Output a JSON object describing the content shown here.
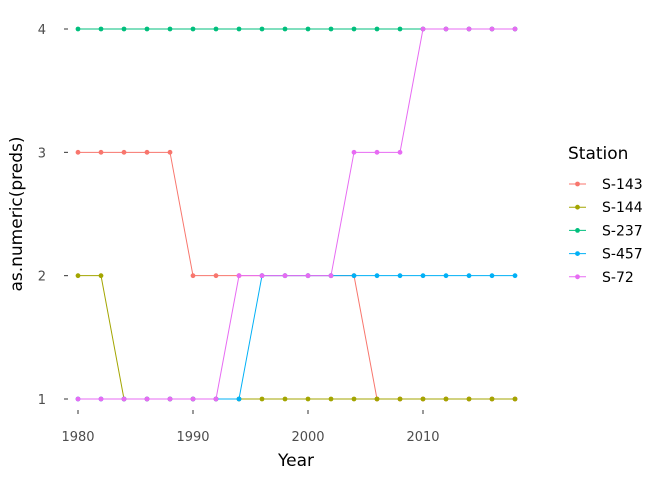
{
  "chart_data": {
    "type": "line",
    "xlabel": "Year",
    "ylabel": "as.numeric(preds)",
    "xlim": [
      1980,
      2018
    ],
    "ylim": [
      1,
      4
    ],
    "x_ticks": [
      1980,
      1990,
      2000,
      2010
    ],
    "x_tick_labels": [
      "1980",
      "1990",
      "2000",
      "2010"
    ],
    "y_ticks": [
      1,
      2,
      3,
      4
    ],
    "y_tick_labels": [
      "1",
      "2",
      "3",
      "4"
    ],
    "grid": false,
    "legend_title": "Station",
    "legend_position": "right",
    "x": [
      1980,
      1982,
      1984,
      1986,
      1988,
      1990,
      1992,
      1994,
      1996,
      1998,
      2000,
      2002,
      2004,
      2006,
      2008,
      2010,
      2012,
      2014,
      2016,
      2018
    ],
    "series": [
      {
        "name": "S-143",
        "color": "#F8766D",
        "values": [
          3,
          3,
          3,
          3,
          3,
          2,
          2,
          2,
          2,
          2,
          2,
          2,
          2,
          1,
          1,
          1,
          1,
          1,
          1,
          1
        ]
      },
      {
        "name": "S-144",
        "color": "#A3A500",
        "values": [
          2,
          2,
          1,
          1,
          1,
          1,
          1,
          1,
          1,
          1,
          1,
          1,
          1,
          1,
          1,
          1,
          1,
          1,
          1,
          1
        ]
      },
      {
        "name": "S-237",
        "color": "#00BF7D",
        "values": [
          4,
          4,
          4,
          4,
          4,
          4,
          4,
          4,
          4,
          4,
          4,
          4,
          4,
          4,
          4,
          4,
          4,
          4,
          4,
          4
        ]
      },
      {
        "name": "S-457",
        "color": "#00B0F6",
        "values": [
          1,
          1,
          1,
          1,
          1,
          1,
          1,
          1,
          2,
          2,
          2,
          2,
          2,
          2,
          2,
          2,
          2,
          2,
          2,
          2
        ]
      },
      {
        "name": "S-72",
        "color": "#E76BF3",
        "values": [
          1,
          1,
          1,
          1,
          1,
          1,
          1,
          2,
          2,
          2,
          2,
          2,
          3,
          3,
          3,
          4,
          4,
          4,
          4,
          4
        ]
      }
    ]
  }
}
